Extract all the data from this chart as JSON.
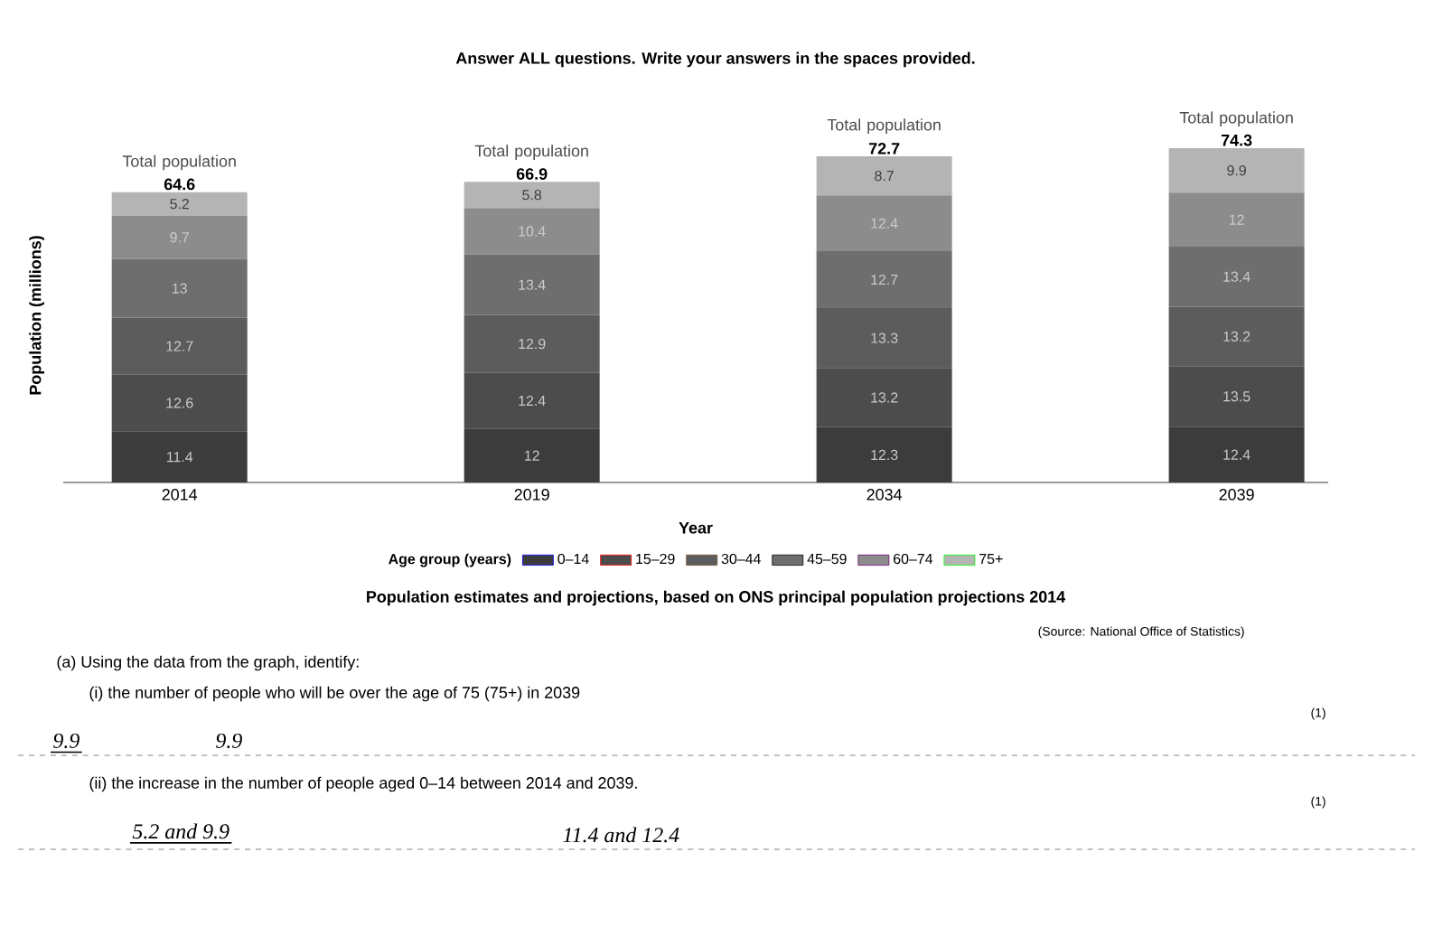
{
  "chart_data": {
    "type": "bar",
    "stacked": true,
    "title": "Population estimates and projections, based on ONS principal population projections 2014",
    "xlabel": "Year",
    "ylabel": "Population (millions)",
    "legend_title": "Age group (years)",
    "legend": "bottom",
    "data_labels": true,
    "categories": [
      "2014",
      "2019",
      "2034",
      "2039"
    ],
    "series": [
      {
        "name": "0–14",
        "color": "#3c3c3c",
        "values": [
          11.4,
          12,
          12.3,
          12.4
        ]
      },
      {
        "name": "15–29",
        "color": "#4c4c4c",
        "values": [
          12.6,
          12.4,
          13.2,
          13.5
        ]
      },
      {
        "name": "30–44",
        "color": "#5c5c5c",
        "values": [
          12.7,
          12.9,
          13.3,
          13.2
        ]
      },
      {
        "name": "45–59",
        "color": "#6e6e6e",
        "values": [
          13,
          13.4,
          12.7,
          13.4
        ]
      },
      {
        "name": "60–74",
        "color": "#8c8c8c",
        "values": [
          9.7,
          10.4,
          12.4,
          12
        ]
      },
      {
        "name": "75+",
        "color": "#b4b4b4",
        "values": [
          5.2,
          5.8,
          8.7,
          9.9
        ]
      }
    ],
    "totals": [
      "64.6",
      "66.9",
      "72.7",
      "74.3"
    ],
    "annotations": [
      "Answer ALL questions. Write your answers in the spaces provided.",
      {
        "text": "Total population",
        "x": "2014",
        "y": 64.6
      },
      {
        "text": "Total population",
        "x": "2019",
        "y": 66.9
      },
      {
        "text": "Total population",
        "x": "2034",
        "y": 72.7
      },
      {
        "text": "Total population",
        "x": "2039",
        "y": 74.3
      },
      "(Source: National Office of Statistics)",
      "(a)  Using the data from the graph, identify:",
      "(i)   the number of people who will be over the age of 75 (75+) in 2039",
      "(1)",
      "9.9",
      "9.9",
      "(ii)  the increase in the number of people aged 0–14 between 2014 and 2039.",
      "(1)",
      "5.2 and 9.9",
      "11.4 and 12.4"
    ]
  }
}
